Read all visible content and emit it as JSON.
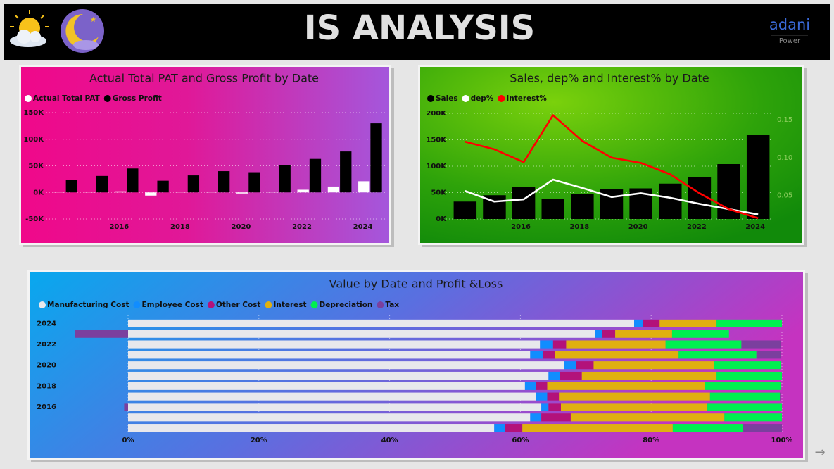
{
  "header": {
    "title": "IS ANALYSIS",
    "logo": "adani",
    "logo_sub": "Power"
  },
  "chart_data": [
    {
      "type": "bar",
      "title": "Actual Total PAT and Gross Profit by Date",
      "categories": [
        null,
        null,
        "2016",
        null,
        "2018",
        null,
        "2020",
        null,
        "2022",
        null,
        "2024"
      ],
      "series": [
        {
          "name": "Actual Total PAT",
          "color": "#ffffff",
          "values": [
            1000,
            1000,
            2000,
            -6000,
            1000,
            1000,
            -2000,
            1000,
            5000,
            11000,
            21000
          ]
        },
        {
          "name": "Gross Profit",
          "color": "#000000",
          "values": [
            24000,
            31000,
            45000,
            22000,
            32000,
            40000,
            38000,
            51000,
            63000,
            77000,
            130000
          ]
        }
      ],
      "ylim": [
        -50000,
        150000
      ],
      "yticks": [
        {
          "value": -50000,
          "label": "-50K"
        },
        {
          "value": 0,
          "label": "0K"
        },
        {
          "value": 50000,
          "label": "50K"
        },
        {
          "value": 100000,
          "label": "100K"
        },
        {
          "value": 150000,
          "label": "150K"
        }
      ],
      "grid": true
    },
    {
      "type": "combo",
      "title": "Sales, dep% and Interest% by Date",
      "categories": [
        null,
        null,
        "2016",
        null,
        "2018",
        null,
        "2020",
        null,
        "2022",
        null,
        "2024"
      ],
      "series": [
        {
          "name": "Sales",
          "color": "#000000",
          "values": [
            33000,
            45000,
            60000,
            38000,
            47000,
            57000,
            58000,
            67000,
            80000,
            104000,
            160000
          ]
        },
        {
          "name": "dep%",
          "color": "#ffffff",
          "axis": "y2",
          "values": [
            0.056,
            0.042,
            0.045,
            0.071,
            0.06,
            0.048,
            0.053,
            0.047,
            0.039,
            0.032,
            0.025
          ]
        },
        {
          "name": "Interest%",
          "color": "#ff0000",
          "axis": "y2",
          "values": [
            0.121,
            0.111,
            0.094,
            0.156,
            0.122,
            0.1,
            0.093,
            0.078,
            0.053,
            0.032,
            0.02
          ]
        }
      ],
      "ylim": [
        0,
        208000
      ],
      "yticks": [
        {
          "value": 0,
          "label": "0K"
        },
        {
          "value": 50000,
          "label": "50K"
        },
        {
          "value": 100000,
          "label": "100K"
        },
        {
          "value": 150000,
          "label": "150K"
        },
        {
          "value": 200000,
          "label": "200K"
        }
      ],
      "y2lim": [
        0.019,
        0.164
      ],
      "y2ticks": [
        0.05,
        {
          "value": 0.1,
          "label": "0.10"
        },
        0.15
      ],
      "grid": true
    },
    {
      "type": "stacked_barh",
      "title": "Value by Date and Profit &Loss",
      "categories": [
        "2024",
        null,
        "2022",
        null,
        "2020",
        null,
        "2018",
        null,
        "2016",
        null,
        null
      ],
      "series": [
        {
          "name": "Manufacturing Cost",
          "color": "#e8e8ec",
          "values": [
            77.4,
            71.4,
            63.0,
            61.5,
            66.7,
            64.3,
            60.7,
            62.4,
            63.2,
            61.5,
            56.0
          ]
        },
        {
          "name": "Employee Cost",
          "color": "#118dff",
          "values": [
            1.3,
            1.1,
            2.0,
            1.9,
            1.8,
            1.7,
            1.7,
            1.7,
            1.1,
            1.7,
            1.7
          ]
        },
        {
          "name": "Other Cost",
          "color": "#b3127a",
          "values": [
            2.6,
            2.0,
            2.0,
            1.9,
            2.7,
            3.4,
            1.7,
            1.8,
            1.9,
            4.5,
            2.6
          ]
        },
        {
          "name": "Interest",
          "color": "#e0b010",
          "values": [
            8.7,
            8.7,
            15.2,
            18.9,
            18.4,
            20.6,
            24.1,
            23.1,
            22.4,
            23.5,
            23.0
          ]
        },
        {
          "name": "Depreciation",
          "color": "#00f050",
          "values": [
            10.0,
            8.7,
            11.6,
            11.9,
            10.3,
            10.0,
            11.7,
            10.7,
            11.4,
            8.8,
            10.7
          ]
        },
        {
          "name": "Tax",
          "color": "#7b3f9e",
          "values": [
            0,
            -8.1,
            6.1,
            3.8,
            0,
            0,
            0,
            0.2,
            -0.6,
            0,
            6.0
          ]
        }
      ],
      "xlim": [
        0,
        100
      ],
      "xticks": [
        {
          "value": 0,
          "label": "0%"
        },
        {
          "value": 20,
          "label": "20%"
        },
        {
          "value": 40,
          "label": "40%"
        },
        {
          "value": 60,
          "label": "60%"
        },
        {
          "value": 80,
          "label": "80%"
        },
        {
          "value": 100,
          "label": "100%"
        }
      ],
      "grid": true
    }
  ]
}
